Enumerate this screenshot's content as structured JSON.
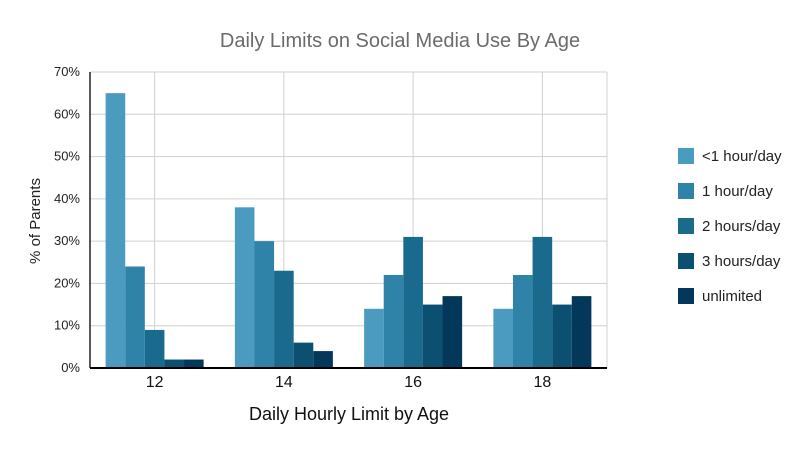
{
  "chart_data": {
    "type": "bar",
    "title": "Daily Limits on Social Media Use By Age",
    "xlabel": "Daily Hourly Limit by Age",
    "ylabel": "% of Parents",
    "categories": [
      "12",
      "14",
      "16",
      "18"
    ],
    "ylim": [
      0,
      70
    ],
    "yticks": [
      "0%",
      "10%",
      "20%",
      "30%",
      "40%",
      "50%",
      "60%",
      "70%"
    ],
    "grid": true,
    "legend_position": "right",
    "series": [
      {
        "name": "<1 hour/day",
        "color": "#4a9bbf",
        "values": [
          65,
          38,
          14,
          14
        ]
      },
      {
        "name": "1 hour/day",
        "color": "#2f82a8",
        "values": [
          24,
          30,
          22,
          22
        ]
      },
      {
        "name": "2 hours/day",
        "color": "#1a6a8e",
        "values": [
          9,
          23,
          31,
          31
        ]
      },
      {
        "name": "3 hours/day",
        "color": "#0b5070",
        "values": [
          2,
          6,
          15,
          15
        ]
      },
      {
        "name": "unlimited",
        "color": "#03385a",
        "values": [
          2,
          4,
          17,
          17
        ]
      }
    ]
  }
}
